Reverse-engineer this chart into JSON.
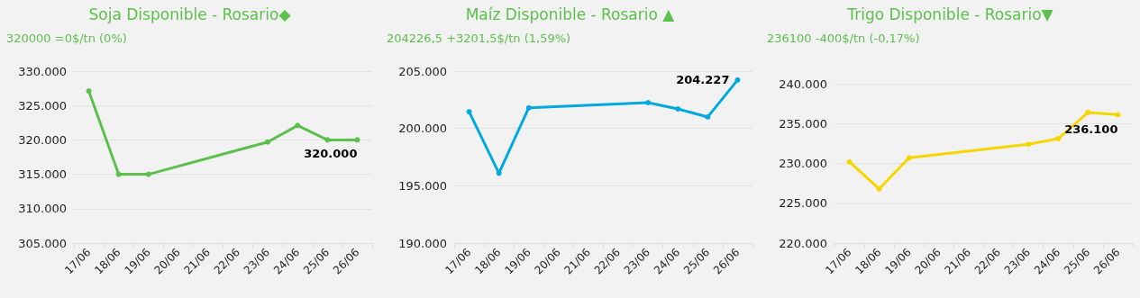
{
  "chart_data": [
    {
      "type": "line",
      "title": "Soja Disponible - Rosario◆",
      "subtitle": "320000 =0$/tn (0%)",
      "categories": [
        "17/06",
        "18/06",
        "19/06",
        "20/06",
        "21/06",
        "22/06",
        "23/06",
        "24/06",
        "25/06",
        "26/06"
      ],
      "series": [
        {
          "color": "#5cc04c",
          "values": [
            327100,
            315000,
            315000,
            null,
            null,
            null,
            319700,
            322100,
            320000,
            320000
          ],
          "value_labels": [
            null,
            null,
            null,
            null,
            null,
            null,
            null,
            null,
            null,
            "320.000"
          ]
        }
      ],
      "ylim": [
        305000,
        330000
      ],
      "yticks": [
        {
          "value": 305000,
          "label": "305.000"
        },
        {
          "value": 310000,
          "label": "310.000"
        },
        {
          "value": 315000,
          "label": "315.000"
        },
        {
          "value": 320000,
          "label": "320.000"
        },
        {
          "value": 325000,
          "label": "325.000"
        },
        {
          "value": 330000,
          "label": "330.000"
        }
      ],
      "grid": "y",
      "marker": "circle",
      "line_style": "solid"
    },
    {
      "type": "line",
      "title": "Maíz Disponible - Rosario ▲",
      "subtitle": "204226,5 +3201,5$/tn (1,59%)",
      "categories": [
        "17/06",
        "18/06",
        "19/06",
        "20/06",
        "21/06",
        "22/06",
        "23/06",
        "24/06",
        "25/06",
        "26/06"
      ],
      "series": [
        {
          "color": "#00a9e0",
          "values": [
            201450,
            196100,
            201800,
            null,
            null,
            null,
            202250,
            201700,
            201000,
            204227
          ],
          "value_labels": [
            null,
            null,
            null,
            null,
            null,
            null,
            null,
            null,
            null,
            "204.227"
          ]
        }
      ],
      "ylim": [
        190000,
        205000
      ],
      "yticks": [
        {
          "value": 190000,
          "label": "190.000"
        },
        {
          "value": 195000,
          "label": "195.000"
        },
        {
          "value": 200000,
          "label": "200.000"
        },
        {
          "value": 205000,
          "label": "205.000"
        }
      ],
      "grid": "y",
      "marker": "circle",
      "line_style": "solid"
    },
    {
      "type": "line",
      "title": "Trigo Disponible - Rosario▼",
      "subtitle": "236100 -400$/tn (-0,17%)",
      "categories": [
        "17/06",
        "18/06",
        "19/06",
        "20/06",
        "21/06",
        "22/06",
        "23/06",
        "24/06",
        "25/06",
        "26/06"
      ],
      "series": [
        {
          "color": "#f7d600",
          "values": [
            230200,
            226800,
            230700,
            null,
            null,
            null,
            232400,
            233100,
            236400,
            236100
          ],
          "value_labels": [
            null,
            null,
            null,
            null,
            null,
            null,
            null,
            null,
            null,
            "236.100"
          ]
        }
      ],
      "ylim": [
        220000,
        240000
      ],
      "yticks": [
        {
          "value": 220000,
          "label": "220.000"
        },
        {
          "value": 225000,
          "label": "225.000"
        },
        {
          "value": 230000,
          "label": "230.000"
        },
        {
          "value": 235000,
          "label": "235.000"
        },
        {
          "value": 240000,
          "label": "240.000"
        }
      ],
      "grid": "y",
      "marker": "circle",
      "line_style": "solid"
    }
  ]
}
